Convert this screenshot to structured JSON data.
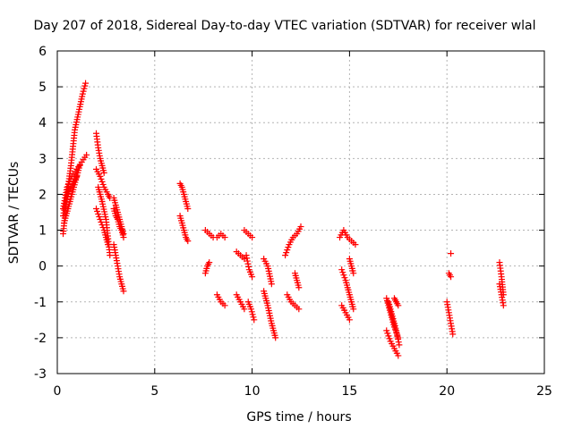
{
  "chart_data": {
    "type": "scatter",
    "title": "Day 207 of 2018, Sidereal Day-to-day VTEC variation (SDTVAR) for receiver wlal",
    "xlabel": "GPS time / hours",
    "ylabel": "SDTVAR / TECUs",
    "xlim": [
      0,
      25
    ],
    "ylim": [
      -3,
      6
    ],
    "xticks": [
      "0",
      "5",
      "10",
      "15",
      "20",
      "25"
    ],
    "yticks": [
      "-3",
      "-2",
      "-1",
      "0",
      "1",
      "2",
      "3",
      "4",
      "5",
      "6"
    ],
    "grid": true,
    "marker": "+",
    "color": "#ff0000",
    "segments": [
      {
        "x": [
          0.3,
          0.5,
          0.7,
          0.9,
          1.1,
          1.3,
          1.45
        ],
        "y": [
          0.9,
          2.0,
          2.8,
          3.8,
          4.3,
          4.8,
          5.1
        ]
      },
      {
        "x": [
          0.3,
          0.5,
          0.75,
          1.0,
          1.25,
          1.5
        ],
        "y": [
          1.6,
          2.2,
          2.5,
          2.7,
          2.9,
          3.1
        ]
      },
      {
        "x": [
          0.3,
          0.45,
          0.6,
          0.8,
          1.0
        ],
        "y": [
          1.4,
          1.8,
          2.1,
          2.3,
          2.5
        ]
      },
      {
        "x": [
          0.35,
          0.55,
          0.75,
          0.95,
          1.15
        ],
        "y": [
          1.2,
          1.6,
          2.0,
          2.4,
          2.8
        ]
      },
      {
        "x": [
          2.0,
          2.1,
          2.2,
          2.3,
          2.4
        ],
        "y": [
          3.7,
          3.3,
          3.0,
          2.8,
          2.6
        ]
      },
      {
        "x": [
          2.0,
          2.2,
          2.4,
          2.6,
          2.7
        ],
        "y": [
          2.7,
          2.5,
          2.2,
          2.0,
          1.9
        ]
      },
      {
        "x": [
          2.0,
          2.2,
          2.4,
          2.6
        ],
        "y": [
          1.6,
          1.3,
          1.0,
          0.6
        ]
      },
      {
        "x": [
          2.1,
          2.3,
          2.5,
          2.7
        ],
        "y": [
          2.2,
          1.8,
          1.3,
          0.3
        ]
      },
      {
        "x": [
          2.9,
          3.0,
          3.1,
          3.2,
          3.3,
          3.4
        ],
        "y": [
          1.9,
          1.7,
          1.5,
          1.3,
          1.1,
          0.9
        ]
      },
      {
        "x": [
          2.9,
          3.0,
          3.1,
          3.2,
          3.3,
          3.4
        ],
        "y": [
          1.6,
          1.4,
          1.3,
          1.1,
          1.0,
          0.8
        ]
      },
      {
        "x": [
          2.9,
          3.0,
          3.1,
          3.2,
          3.3,
          3.4
        ],
        "y": [
          0.6,
          0.3,
          0.0,
          -0.3,
          -0.5,
          -0.7
        ]
      },
      {
        "x": [
          6.3,
          6.4,
          6.5,
          6.6,
          6.7
        ],
        "y": [
          2.3,
          2.2,
          2.0,
          1.8,
          1.6
        ]
      },
      {
        "x": [
          6.3,
          6.4,
          6.5,
          6.6,
          6.7
        ],
        "y": [
          1.4,
          1.2,
          1.0,
          0.8,
          0.7
        ]
      },
      {
        "x": [
          7.6,
          7.8,
          8.0
        ],
        "y": [
          1.0,
          0.9,
          0.8
        ]
      },
      {
        "x": [
          7.6,
          7.7,
          7.8
        ],
        "y": [
          -0.2,
          0.0,
          0.1
        ]
      },
      {
        "x": [
          8.2,
          8.4,
          8.6
        ],
        "y": [
          0.8,
          0.9,
          0.8
        ]
      },
      {
        "x": [
          8.2,
          8.4,
          8.6
        ],
        "y": [
          -0.8,
          -1.0,
          -1.1
        ]
      },
      {
        "x": [
          9.2,
          9.4,
          9.6
        ],
        "y": [
          0.4,
          0.3,
          0.2
        ]
      },
      {
        "x": [
          9.2,
          9.4,
          9.6
        ],
        "y": [
          -0.8,
          -1.0,
          -1.2
        ]
      },
      {
        "x": [
          9.6,
          9.8,
          10.0
        ],
        "y": [
          1.0,
          0.9,
          0.8
        ]
      },
      {
        "x": [
          9.7,
          9.85,
          10.0
        ],
        "y": [
          0.3,
          -0.1,
          -0.3
        ]
      },
      {
        "x": [
          9.8,
          9.95,
          10.1
        ],
        "y": [
          -1.0,
          -1.2,
          -1.5
        ]
      },
      {
        "x": [
          10.6,
          10.8,
          11.0,
          11.2
        ],
        "y": [
          -0.7,
          -1.1,
          -1.6,
          -2.0
        ]
      },
      {
        "x": [
          10.6,
          10.8,
          11.0
        ],
        "y": [
          0.2,
          0.0,
          -0.5
        ]
      },
      {
        "x": [
          11.7,
          11.9,
          12.1,
          12.3,
          12.5
        ],
        "y": [
          0.3,
          0.6,
          0.8,
          0.9,
          1.1
        ]
      },
      {
        "x": [
          11.8,
          12.0,
          12.2,
          12.4
        ],
        "y": [
          -0.8,
          -1.0,
          -1.1,
          -1.2
        ]
      },
      {
        "x": [
          12.2,
          12.3,
          12.4
        ],
        "y": [
          -0.2,
          -0.4,
          -0.6
        ]
      },
      {
        "x": [
          14.5,
          14.7,
          14.9,
          15.1,
          15.3
        ],
        "y": [
          0.8,
          1.0,
          0.8,
          0.7,
          0.6
        ]
      },
      {
        "x": [
          14.6,
          14.8,
          15.0,
          15.2
        ],
        "y": [
          -0.1,
          -0.4,
          -0.8,
          -1.2
        ]
      },
      {
        "x": [
          14.6,
          14.8,
          15.0
        ],
        "y": [
          -1.1,
          -1.3,
          -1.5
        ]
      },
      {
        "x": [
          15.0,
          15.1,
          15.2
        ],
        "y": [
          0.2,
          0.0,
          -0.2
        ]
      },
      {
        "x": [
          16.9,
          17.1,
          17.3,
          17.5
        ],
        "y": [
          -0.9,
          -1.3,
          -1.7,
          -2.0
        ]
      },
      {
        "x": [
          16.9,
          17.1,
          17.3,
          17.5
        ],
        "y": [
          -1.8,
          -2.1,
          -2.3,
          -2.5
        ]
      },
      {
        "x": [
          17.0,
          17.2,
          17.4,
          17.55
        ],
        "y": [
          -1.0,
          -1.4,
          -1.8,
          -2.2
        ]
      },
      {
        "x": [
          17.3,
          17.4,
          17.5
        ],
        "y": [
          -0.9,
          -1.0,
          -1.1
        ]
      },
      {
        "x": [
          20.0,
          20.1,
          20.2,
          20.3
        ],
        "y": [
          -1.0,
          -1.3,
          -1.6,
          -1.9
        ]
      },
      {
        "x": [
          20.1,
          20.2
        ],
        "y": [
          -0.2,
          -0.3
        ]
      },
      {
        "x": [
          20.2
        ],
        "y": [
          0.35
        ]
      },
      {
        "x": [
          22.7,
          22.8,
          22.9
        ],
        "y": [
          0.1,
          -0.3,
          -0.8
        ]
      },
      {
        "x": [
          22.7,
          22.8,
          22.9
        ],
        "y": [
          -0.5,
          -0.8,
          -1.1
        ]
      }
    ]
  }
}
